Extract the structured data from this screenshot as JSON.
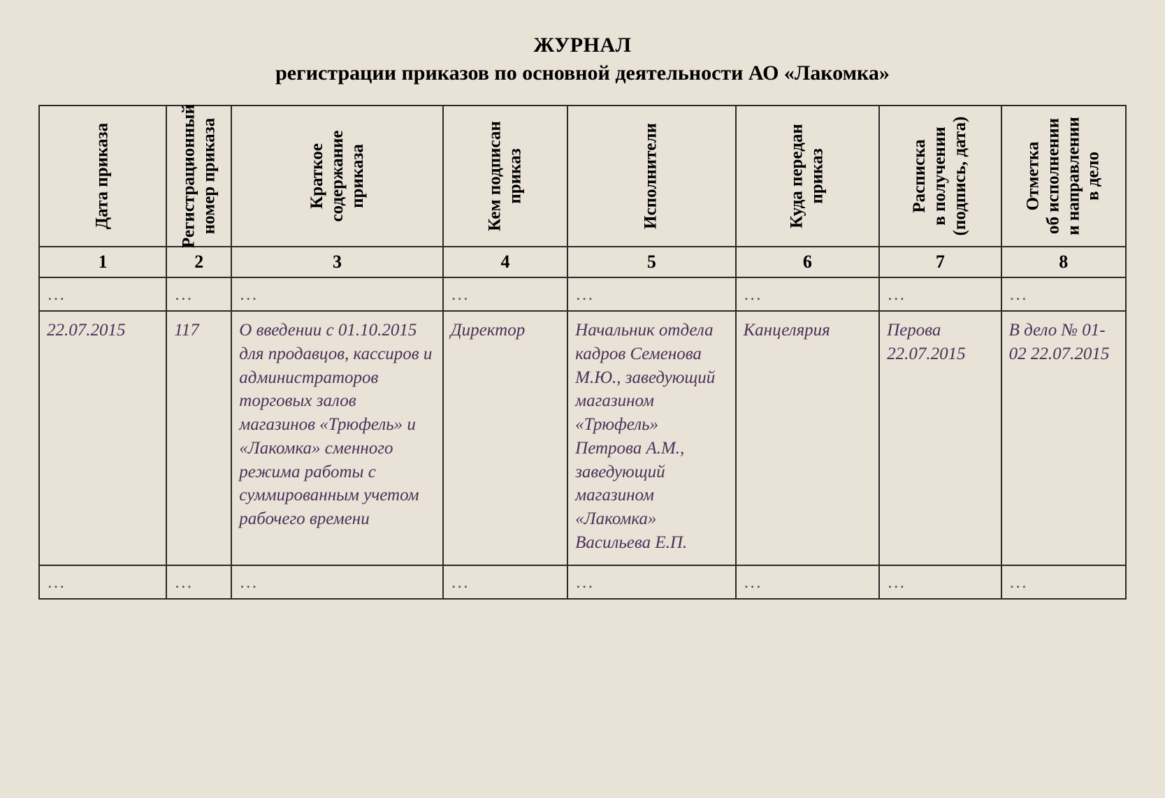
{
  "title": {
    "line1": "ЖУРНАЛ",
    "line2": "регистрации приказов по основной деятельности АО «Лакомка»"
  },
  "table": {
    "background_color": "#e8e2d7",
    "border_color": "#2a2a2a",
    "header_text_color": "#000000",
    "data_text_color": "#4b3156",
    "ellipsis_color": "#5c5c5c",
    "header_fontsize": 25,
    "data_fontsize": 25,
    "columns": [
      {
        "num": "1",
        "header": "Дата приказа",
        "width_pct": 9.4
      },
      {
        "num": "2",
        "header": "Регистрационный\nномер приказа",
        "width_pct": 4.8
      },
      {
        "num": "3",
        "header": "Краткое\nсодержание\nприказа",
        "width_pct": 15.6
      },
      {
        "num": "4",
        "header": "Кем подписан\nприказ",
        "width_pct": 9.2
      },
      {
        "num": "5",
        "header": "Исполнители",
        "width_pct": 12.4
      },
      {
        "num": "6",
        "header": "Куда передан\nприказ",
        "width_pct": 10.6
      },
      {
        "num": "7",
        "header": "Расписка\nв получении\n(подпись, дата)",
        "width_pct": 9.0
      },
      {
        "num": "8",
        "header": "Отметка\nоб исполнении\nи направлении\nв дело",
        "width_pct": 9.2
      }
    ],
    "ellipsis": "…",
    "rows": [
      {
        "c1": "22.07.2015",
        "c2": "117",
        "c3": "О введении с 01.10.2015 для продавцов, кассиров и администраторов торговых залов магазинов «Трюфель» и «Лакомка» сменного режима работы с суммированным учетом рабочего времени",
        "c4": "Директор",
        "c5": "Начальник отдела кадров Семенова М.Ю., заведующий магазином «Трюфель» Петрова А.М., заведующий магазином «Лакомка» Васильева Е.П.",
        "c6": "Канцелярия",
        "c7": "Перова 22.07.2015",
        "c8": "В дело № 01-02 22.07.2015"
      }
    ]
  }
}
